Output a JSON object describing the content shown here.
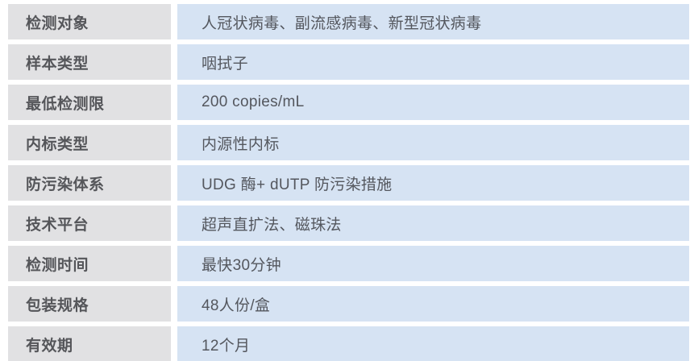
{
  "table": {
    "rows": [
      {
        "label": "检测对象",
        "value": "人冠状病毒、副流感病毒、新型冠状病毒"
      },
      {
        "label": "样本类型",
        "value": "咽拭子"
      },
      {
        "label": "最低检测限",
        "value": "200 copies/mL"
      },
      {
        "label": "内标类型",
        "value": "内源性内标"
      },
      {
        "label": "防污染体系",
        "value": "UDG 酶+ dUTP 防污染措施"
      },
      {
        "label": "技术平台",
        "value": "超声直扩法、磁珠法"
      },
      {
        "label": "检测时间",
        "value": "最快30分钟"
      },
      {
        "label": "包装规格",
        "value": "48人份/盒"
      },
      {
        "label": "有效期",
        "value": "12个月"
      }
    ],
    "colors": {
      "label_bg": "#e1e1e3",
      "value_bg": "#d6e3f3",
      "label_text": "#55565a",
      "value_text": "#54575e"
    }
  }
}
